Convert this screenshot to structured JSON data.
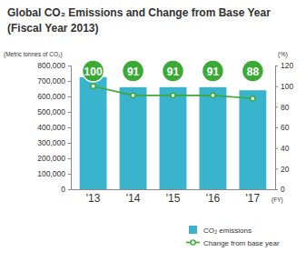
{
  "chart_data": {
    "type": "bar",
    "title": "Global CO₂ Emissions and Change from Base Year (Fiscal Year 2013)",
    "y_label": "(Metric tonnes of CO₂)",
    "y2_label": "(%)",
    "x_label": "(FY)",
    "categories": [
      "'13",
      "'14",
      "'15",
      "'16",
      "'17"
    ],
    "series": [
      {
        "name": "CO₂ emissions",
        "type": "bar",
        "color": "#3ab4cc",
        "values": [
          725000,
          660000,
          660000,
          660000,
          640000
        ]
      },
      {
        "name": "Change from base year",
        "type": "line",
        "axis": "y2",
        "color": "#3aaa35",
        "marker": "circle",
        "data_labels": true,
        "values": [
          100,
          91,
          91,
          91,
          88
        ]
      }
    ],
    "ylim": [
      0,
      800000
    ],
    "yticks": [
      0,
      {
        "value": 100000,
        "label": "100,000"
      },
      {
        "value": 200000,
        "label": "200,000"
      },
      {
        "value": 300000,
        "label": "300,000"
      },
      {
        "value": 400000,
        "label": "400,000"
      },
      {
        "value": 500000,
        "label": "500,000"
      },
      {
        "value": 600000,
        "label": "600,000"
      },
      {
        "value": 700000,
        "label": "700,000"
      },
      {
        "value": 800000,
        "label": "800,000"
      }
    ],
    "y2lim": [
      0,
      120
    ],
    "y2ticks": [
      0,
      20,
      40,
      60,
      80,
      100,
      120
    ],
    "grid": false,
    "legend": "bottom-right"
  }
}
